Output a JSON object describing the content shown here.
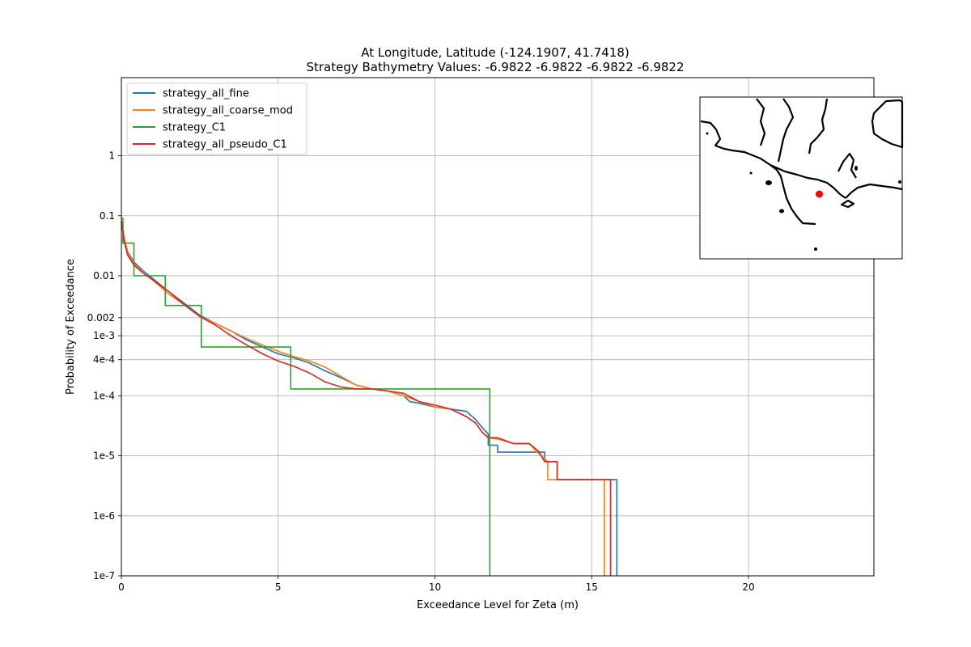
{
  "chart_data": {
    "type": "line",
    "title": "At Longitude, Latitude (-124.1907,  41.7418)",
    "subtitle": "Strategy Bathymetry Values:   -6.9822   -6.9822   -6.9822   -6.9822",
    "xlabel": "Exceedance Level for Zeta (m)",
    "ylabel": "Probability of Exceedance",
    "xlim": [
      0,
      24
    ],
    "ylim": [
      1e-07,
      20
    ],
    "yscale": "log",
    "grid": true,
    "legend_position": "upper-left",
    "x_ticks": [
      0,
      5,
      10,
      15,
      20
    ],
    "x_tick_labels": [
      "0",
      "5",
      "10",
      "15",
      "20"
    ],
    "y_ticks": [
      1e-07,
      1e-06,
      1e-05,
      0.0001,
      0.0004,
      0.001,
      0.002,
      0.01,
      0.1,
      1
    ],
    "y_tick_labels": [
      "1e-7",
      "1e-6",
      "1e-5",
      "1e-4",
      "4e-4",
      "1e-3",
      "0.002",
      "0.01",
      "0.1",
      "1"
    ],
    "series": [
      {
        "name": "strategy_all_fine",
        "color": "#1f77b4",
        "x": [
          0.0,
          0.1,
          0.2,
          0.4,
          0.7,
          1.0,
          1.5,
          2.0,
          2.5,
          3.0,
          3.5,
          4.0,
          4.5,
          5.0,
          5.5,
          6.0,
          6.5,
          7.0,
          7.5,
          8.0,
          8.5,
          9.0,
          9.2,
          9.5,
          10.0,
          10.5,
          11.0,
          11.3,
          11.5,
          11.7,
          11.7,
          12.0,
          12.0,
          13.0,
          13.0,
          13.5,
          13.5,
          13.9,
          13.9,
          15.8,
          15.8
        ],
        "y": [
          0.08,
          0.04,
          0.025,
          0.017,
          0.012,
          0.009,
          0.0055,
          0.0035,
          0.0022,
          0.0016,
          0.0012,
          0.00085,
          0.00065,
          0.0005,
          0.00043,
          0.00035,
          0.00026,
          0.0002,
          0.00015,
          0.00013,
          0.00012,
          0.0001,
          8e-05,
          7.5e-05,
          6.5e-05,
          6e-05,
          5.5e-05,
          4e-05,
          3e-05,
          2.3e-05,
          1.5e-05,
          1.5e-05,
          1.15e-05,
          1.15e-05,
          1.15e-05,
          1.15e-05,
          8e-06,
          8e-06,
          4e-06,
          4e-06,
          1e-07
        ]
      },
      {
        "name": "strategy_all_coarse_mod",
        "color": "#ff7f0e",
        "x": [
          0.0,
          0.1,
          0.2,
          0.4,
          0.7,
          1.0,
          1.5,
          2.0,
          2.5,
          3.0,
          3.5,
          4.0,
          4.5,
          5.0,
          5.5,
          6.0,
          6.5,
          7.0,
          7.5,
          8.0,
          8.5,
          9.0,
          9.5,
          10.0,
          10.5,
          11.0,
          11.3,
          11.5,
          11.7,
          12.0,
          12.5,
          13.0,
          13.3,
          13.6,
          13.6,
          14.0,
          15.4,
          15.4
        ],
        "y": [
          0.08,
          0.04,
          0.024,
          0.016,
          0.011,
          0.0085,
          0.005,
          0.0033,
          0.0021,
          0.0016,
          0.0012,
          0.0009,
          0.0007,
          0.00055,
          0.00045,
          0.00038,
          0.0003,
          0.00021,
          0.00015,
          0.00013,
          0.00012,
          0.0001,
          8e-05,
          6.5e-05,
          6e-05,
          4.5e-05,
          3.5e-05,
          2.5e-05,
          2e-05,
          1.9e-05,
          1.6e-05,
          1.6e-05,
          1.1e-05,
          8e-06,
          4e-06,
          4e-06,
          4e-06,
          1e-07
        ]
      },
      {
        "name": "strategy_C1",
        "color": "#2ca02c",
        "x": [
          0.0,
          0.05,
          0.05,
          0.4,
          0.4,
          1.4,
          1.4,
          2.55,
          2.55,
          5.4,
          5.4,
          11.75,
          11.75
        ],
        "y": [
          0.09,
          0.09,
          0.035,
          0.035,
          0.01,
          0.01,
          0.0032,
          0.0032,
          0.00065,
          0.00065,
          0.00013,
          0.00013,
          1e-07
        ]
      },
      {
        "name": "strategy_all_pseudo_C1",
        "color": "#d62728",
        "x": [
          0.0,
          0.1,
          0.2,
          0.4,
          0.7,
          1.0,
          1.5,
          2.0,
          2.5,
          3.0,
          3.5,
          4.0,
          4.5,
          5.0,
          5.5,
          6.0,
          6.5,
          7.0,
          7.5,
          8.0,
          8.5,
          9.0,
          9.5,
          10.0,
          10.5,
          11.0,
          11.3,
          11.5,
          11.7,
          12.0,
          12.5,
          13.0,
          13.3,
          13.5,
          13.5,
          13.9,
          13.9,
          15.6,
          15.6
        ],
        "y": [
          0.08,
          0.035,
          0.022,
          0.015,
          0.011,
          0.0085,
          0.0055,
          0.0033,
          0.0021,
          0.0015,
          0.001,
          0.0007,
          0.0005,
          0.00038,
          0.00031,
          0.00024,
          0.00017,
          0.00014,
          0.00013,
          0.00013,
          0.00012,
          0.00011,
          8e-05,
          7e-05,
          6e-05,
          4.5e-05,
          3.5e-05,
          2.5e-05,
          2e-05,
          2e-05,
          1.6e-05,
          1.6e-05,
          1.2e-05,
          8e-06,
          8e-06,
          8e-06,
          4e-06,
          4e-06,
          1e-07
        ]
      }
    ],
    "inset_map": {
      "marker_color": "#ff0000",
      "marker_position": [
        0.59,
        0.6
      ]
    }
  }
}
